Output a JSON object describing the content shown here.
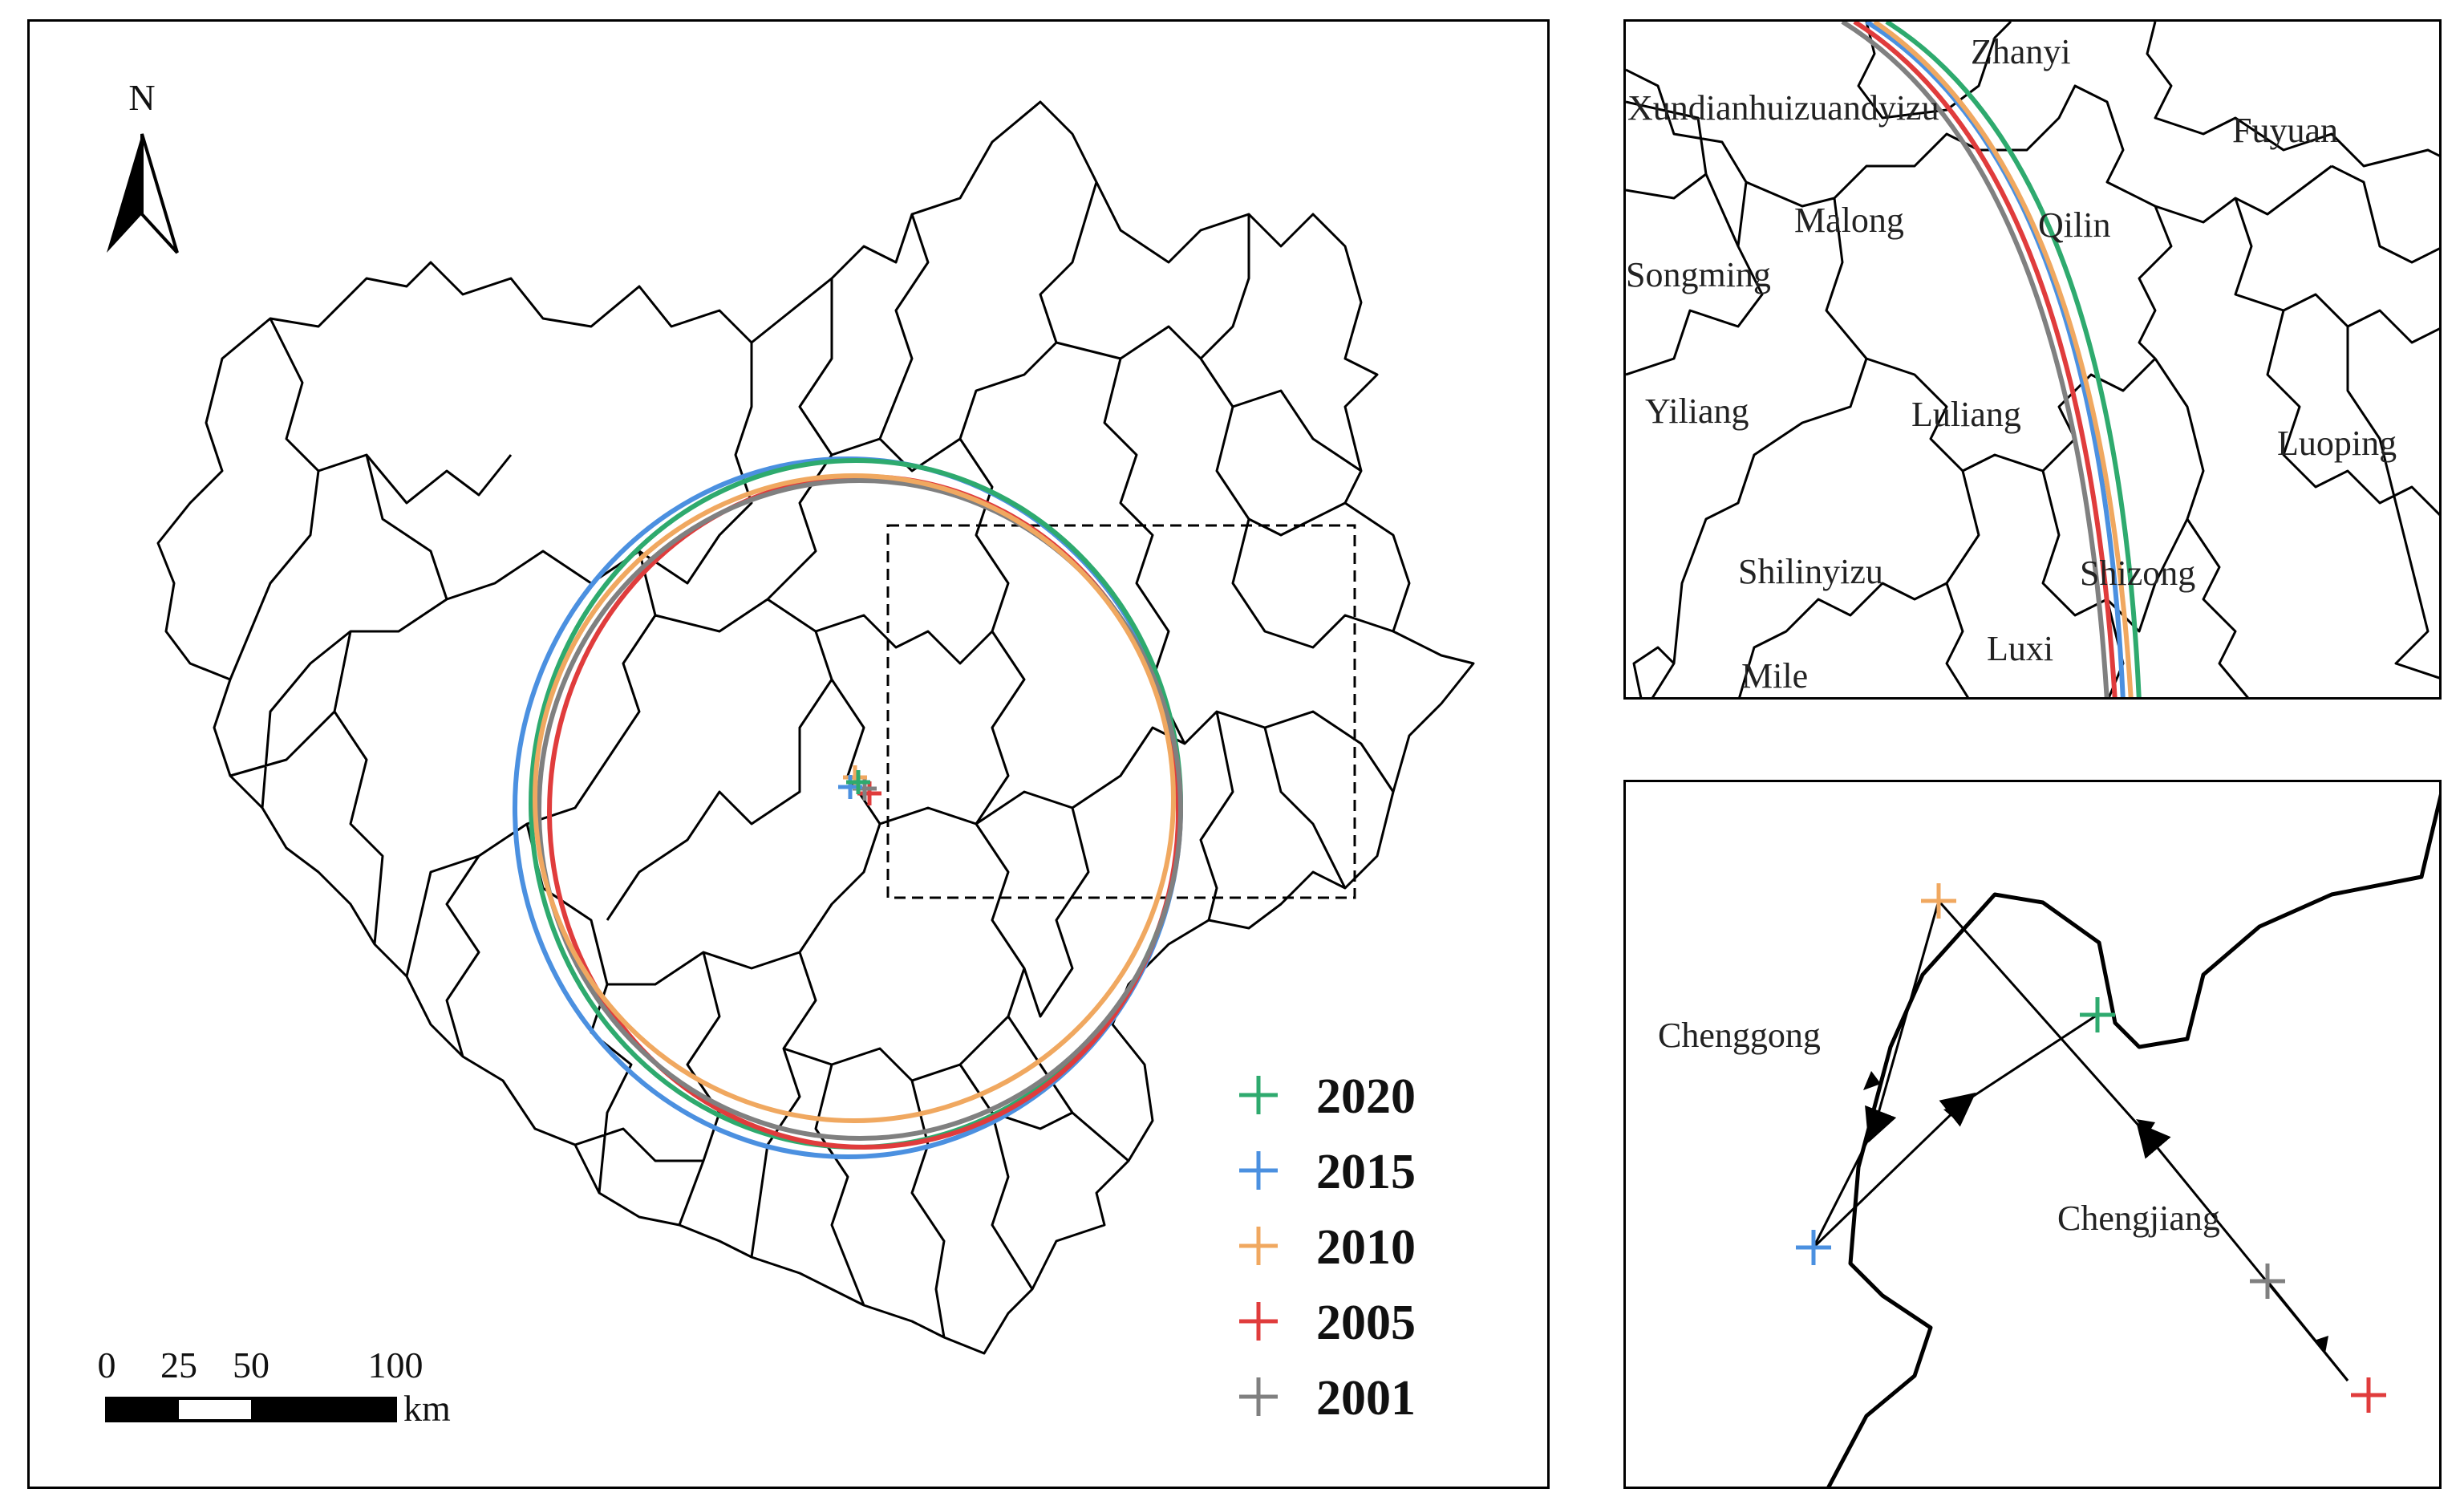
{
  "north_arrow": {
    "label": "N"
  },
  "scale_bar": {
    "ticks": [
      "0",
      "25",
      "50",
      "100"
    ],
    "unit": "km"
  },
  "legend": [
    {
      "year": "2020",
      "color": "#2eaa6e"
    },
    {
      "year": "2015",
      "color": "#4b90e0"
    },
    {
      "year": "2010",
      "color": "#f0a860"
    },
    {
      "year": "2005",
      "color": "#e03c3c"
    },
    {
      "year": "2001",
      "color": "#808080"
    }
  ],
  "inset_top": {
    "labels": [
      "Zhanyi",
      "Xundianhuizuandyizu",
      "Fuyuan",
      "Malong",
      "Qilin",
      "Songming",
      "Yiliang",
      "Luliang",
      "Luoping",
      "Shilinyizu",
      "Shizong",
      "Luxi",
      "Mile"
    ]
  },
  "inset_bottom": {
    "labels": [
      "Chenggong",
      "Chengjiang"
    ],
    "trajectory_order": [
      "2001",
      "2005",
      "2010",
      "2015",
      "2020"
    ]
  },
  "icons": {
    "north": "north-arrow-icon",
    "center": "plus-marker-icon"
  }
}
